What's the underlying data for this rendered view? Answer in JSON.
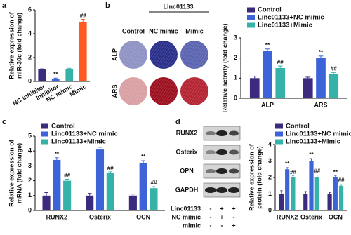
{
  "panel_labels": [
    "a",
    "b",
    "c",
    "d"
  ],
  "image_panel": {
    "header": "Linc01133",
    "columns": [
      "Control",
      "NC mimic",
      "Mimic"
    ],
    "rows": [
      "ALP",
      "ARS"
    ]
  },
  "blot_panel": {
    "bands": [
      "RUNX2",
      "Osterix",
      "OPN",
      "GAPDH"
    ],
    "conditions": [
      {
        "label": "Linc01133",
        "marks": [
          "-",
          "+",
          "+"
        ]
      },
      {
        "label": "NC mimic",
        "marks": [
          "-",
          "+",
          "-"
        ]
      },
      {
        "label": "mimic",
        "marks": [
          "-",
          "-",
          "+"
        ]
      }
    ]
  },
  "chart_data": [
    {
      "type": "bar",
      "ylabel": [
        "Relative expression of",
        "miR-30c (fold change)"
      ],
      "categories": [
        "NC inhibitor",
        "Inhibitor",
        "NC mimic",
        "Mimic"
      ],
      "values": [
        1.0,
        0.2,
        1.0,
        5.0
      ],
      "errors": [
        0.05,
        0.08,
        0.1,
        0.2
      ],
      "colors": [
        "#3b2a7e",
        "#3d63d8",
        "#36b3a8",
        "#ff5a1f"
      ],
      "annotations": [
        null,
        "**",
        null,
        "##"
      ],
      "ylim": [
        0,
        6
      ],
      "yticks": [
        0,
        2,
        4,
        6
      ]
    },
    {
      "type": "bar",
      "ylabel": [
        "Relative activity (fold change)"
      ],
      "categories": [
        "ALP",
        "ARS"
      ],
      "series": [
        {
          "name": "Control",
          "color": "#3b2a7e",
          "values": [
            1.0,
            1.0
          ],
          "errors": [
            0.1,
            0.05
          ],
          "annotations": [
            null,
            null
          ]
        },
        {
          "name": "Linc01133+NC mimic",
          "color": "#3d63d8",
          "values": [
            2.35,
            2.0
          ],
          "errors": [
            0.1,
            0.1
          ],
          "annotations": [
            "**",
            "**"
          ]
        },
        {
          "name": "Linc01133+Mimic",
          "color": "#36b3a8",
          "values": [
            1.5,
            1.2
          ],
          "errors": [
            0.1,
            0.08
          ],
          "annotations": [
            "##",
            "##"
          ]
        }
      ],
      "ylim": [
        0,
        3
      ],
      "yticks": [
        0,
        1,
        2,
        3
      ]
    },
    {
      "type": "bar",
      "ylabel": [
        "Relative expression of",
        "mRNA (fold change)"
      ],
      "categories": [
        "RUNX2",
        "Osterix",
        "OCN"
      ],
      "series": [
        {
          "name": "Control",
          "color": "#3b2a7e",
          "values": [
            1.0,
            1.0,
            1.0
          ],
          "errors": [
            0.2,
            0.15,
            0.1
          ],
          "annotations": [
            null,
            null,
            null
          ]
        },
        {
          "name": "Linc01133+NC mimic",
          "color": "#3d63d8",
          "values": [
            3.4,
            4.1,
            3.2
          ],
          "errors": [
            0.15,
            0.15,
            0.15
          ],
          "annotations": [
            "**",
            "**",
            "**"
          ]
        },
        {
          "name": "Linc01133+Mimic",
          "color": "#36b3a8",
          "values": [
            2.0,
            2.5,
            1.5
          ],
          "errors": [
            0.1,
            0.1,
            0.1
          ],
          "annotations": [
            "##",
            "##",
            "##"
          ]
        }
      ],
      "ylim": [
        0,
        5
      ],
      "yticks": [
        0,
        1,
        2,
        3,
        4,
        5
      ]
    },
    {
      "type": "bar",
      "ylabel": [
        "Relative expression of",
        "protein (fold change)"
      ],
      "categories": [
        "RUNX2",
        "Osterix",
        "OCN"
      ],
      "series": [
        {
          "name": "Control",
          "color": "#3b2a7e",
          "values": [
            1.0,
            1.0,
            1.0
          ],
          "errors": [
            0.2,
            0.15,
            0.1
          ],
          "annotations": [
            null,
            null,
            null
          ]
        },
        {
          "name": "Linc01133+NC mimic",
          "color": "#3d63d8",
          "values": [
            2.5,
            3.0,
            2.0
          ],
          "errors": [
            0.1,
            0.15,
            0.1
          ],
          "annotations": [
            "**",
            "**",
            "**"
          ]
        },
        {
          "name": "Linc01133+Mimic",
          "color": "#36b3a8",
          "values": [
            2.0,
            2.0,
            1.5
          ],
          "errors": [
            0.1,
            0.15,
            0.1
          ],
          "annotations": [
            "##",
            "##",
            "##"
          ]
        }
      ],
      "ylim": [
        0,
        4
      ],
      "yticks": [
        0,
        1,
        2,
        3,
        4
      ]
    }
  ]
}
